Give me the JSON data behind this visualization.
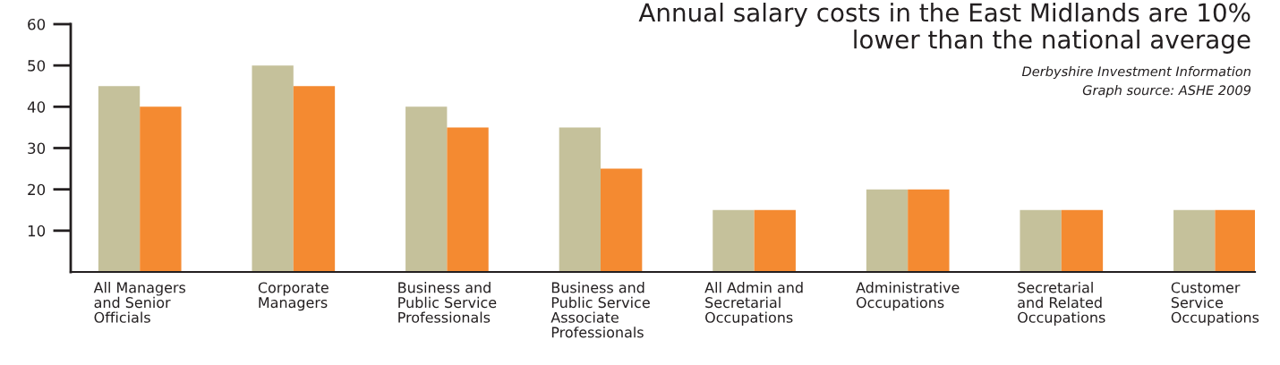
{
  "chart_data": {
    "type": "bar",
    "title": "Annual salary costs in the East Midlands are 10%\nlower than the national average",
    "annotations": [
      "Derbyshire Investment Information",
      "Graph source: ASHE 2009"
    ],
    "categories": [
      "All Managers\nand Senior\nOfficials",
      "Corporate\nManagers",
      "Business and\nPublic Service\nProfessionals",
      "Business and\nPublic Service\nAssociate\nProfessionals",
      "All Admin and\nSecretarial\nOccupations",
      "Administrative\nOccupations",
      "Secretarial\nand Related\nOccupations",
      "Customer\nService\nOccupations"
    ],
    "series": [
      {
        "color": "#c5c19b",
        "values": [
          45,
          50,
          40,
          35,
          15,
          20,
          15,
          15
        ]
      },
      {
        "color": "#f48a31",
        "values": [
          40,
          45,
          35,
          25,
          15,
          20,
          15,
          15
        ]
      }
    ],
    "ylim": [
      0,
      60
    ],
    "yticks": [
      10,
      20,
      30,
      40,
      50,
      60
    ]
  }
}
